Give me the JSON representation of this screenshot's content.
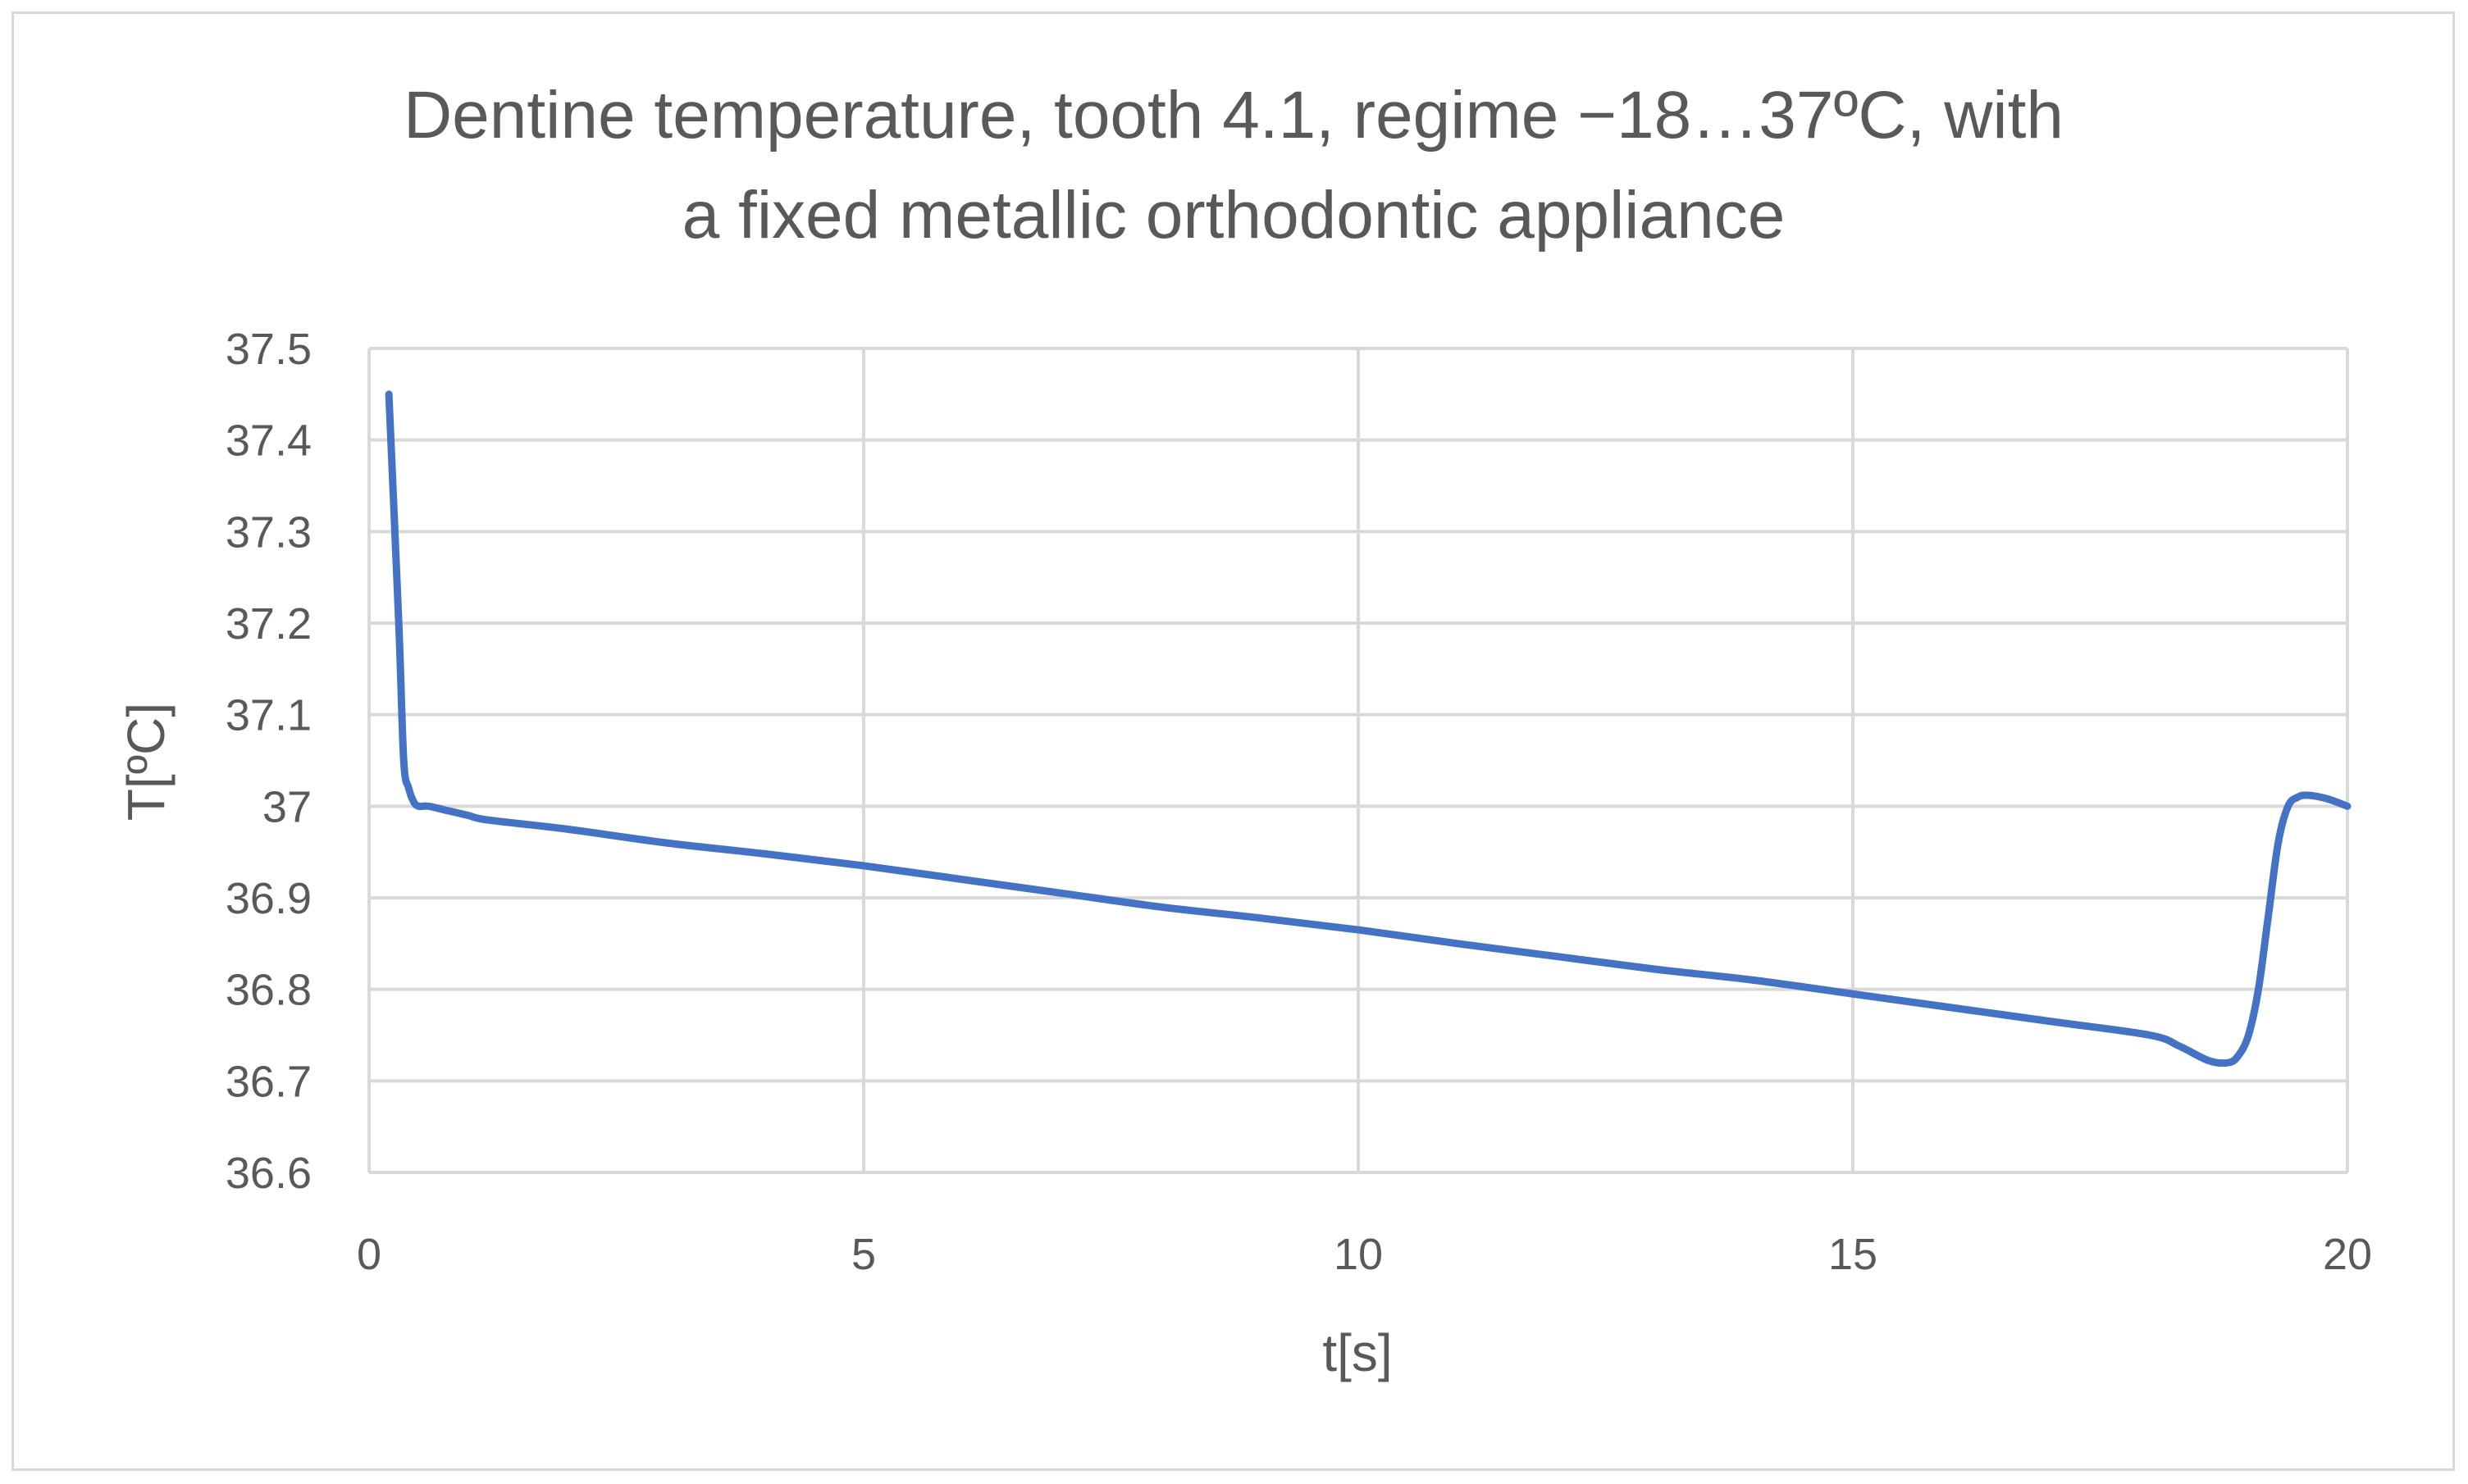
{
  "chart_data": {
    "type": "line",
    "title": "Dentine temperature, tooth 4.1, regime −18…37ºC, with",
    "subtitle": "a fixed metallic orthodontic appliance",
    "xlabel": "t[s]",
    "ylabel": "T[ºC]",
    "xlim": [
      0,
      20
    ],
    "ylim": [
      36.6,
      37.5
    ],
    "x_ticks": [
      0,
      5,
      10,
      15,
      20
    ],
    "x_tick_labels": [
      "0",
      "5",
      "10",
      "15",
      "20"
    ],
    "y_ticks": [
      36.6,
      36.7,
      36.8,
      36.9,
      37.0,
      37.1,
      37.2,
      37.3,
      37.4,
      37.5
    ],
    "y_tick_labels": [
      "36.6",
      "36.7",
      "36.8",
      "36.9",
      "37",
      "37.1",
      "37.2",
      "37.3",
      "37.4",
      "37.5"
    ],
    "grid": true,
    "legend": "none",
    "series": [
      {
        "color": "#4472c4",
        "x": [
          0.2,
          0.3,
          0.35,
          0.4,
          0.45,
          0.5,
          0.6,
          0.8,
          1.0,
          1.2,
          2.0,
          3.0,
          4.0,
          5.0,
          6.0,
          7.0,
          8.0,
          9.0,
          10.0,
          11.0,
          12.0,
          13.0,
          14.0,
          15.0,
          16.0,
          17.0,
          18.0,
          18.3,
          18.6,
          18.8,
          18.9,
          19.0,
          19.1,
          19.2,
          19.3,
          19.4,
          19.5,
          19.6,
          19.8,
          20.0
        ],
        "y": [
          37.45,
          37.2,
          37.05,
          37.02,
          37.005,
          37.0,
          37.0,
          36.995,
          36.99,
          36.985,
          36.975,
          36.96,
          36.948,
          36.935,
          36.92,
          36.905,
          36.89,
          36.878,
          36.865,
          36.85,
          36.836,
          36.822,
          36.81,
          36.795,
          36.78,
          36.765,
          36.75,
          36.738,
          36.722,
          36.72,
          36.728,
          36.75,
          36.8,
          36.88,
          36.96,
          37.0,
          37.01,
          37.012,
          37.008,
          37.0
        ]
      }
    ]
  }
}
